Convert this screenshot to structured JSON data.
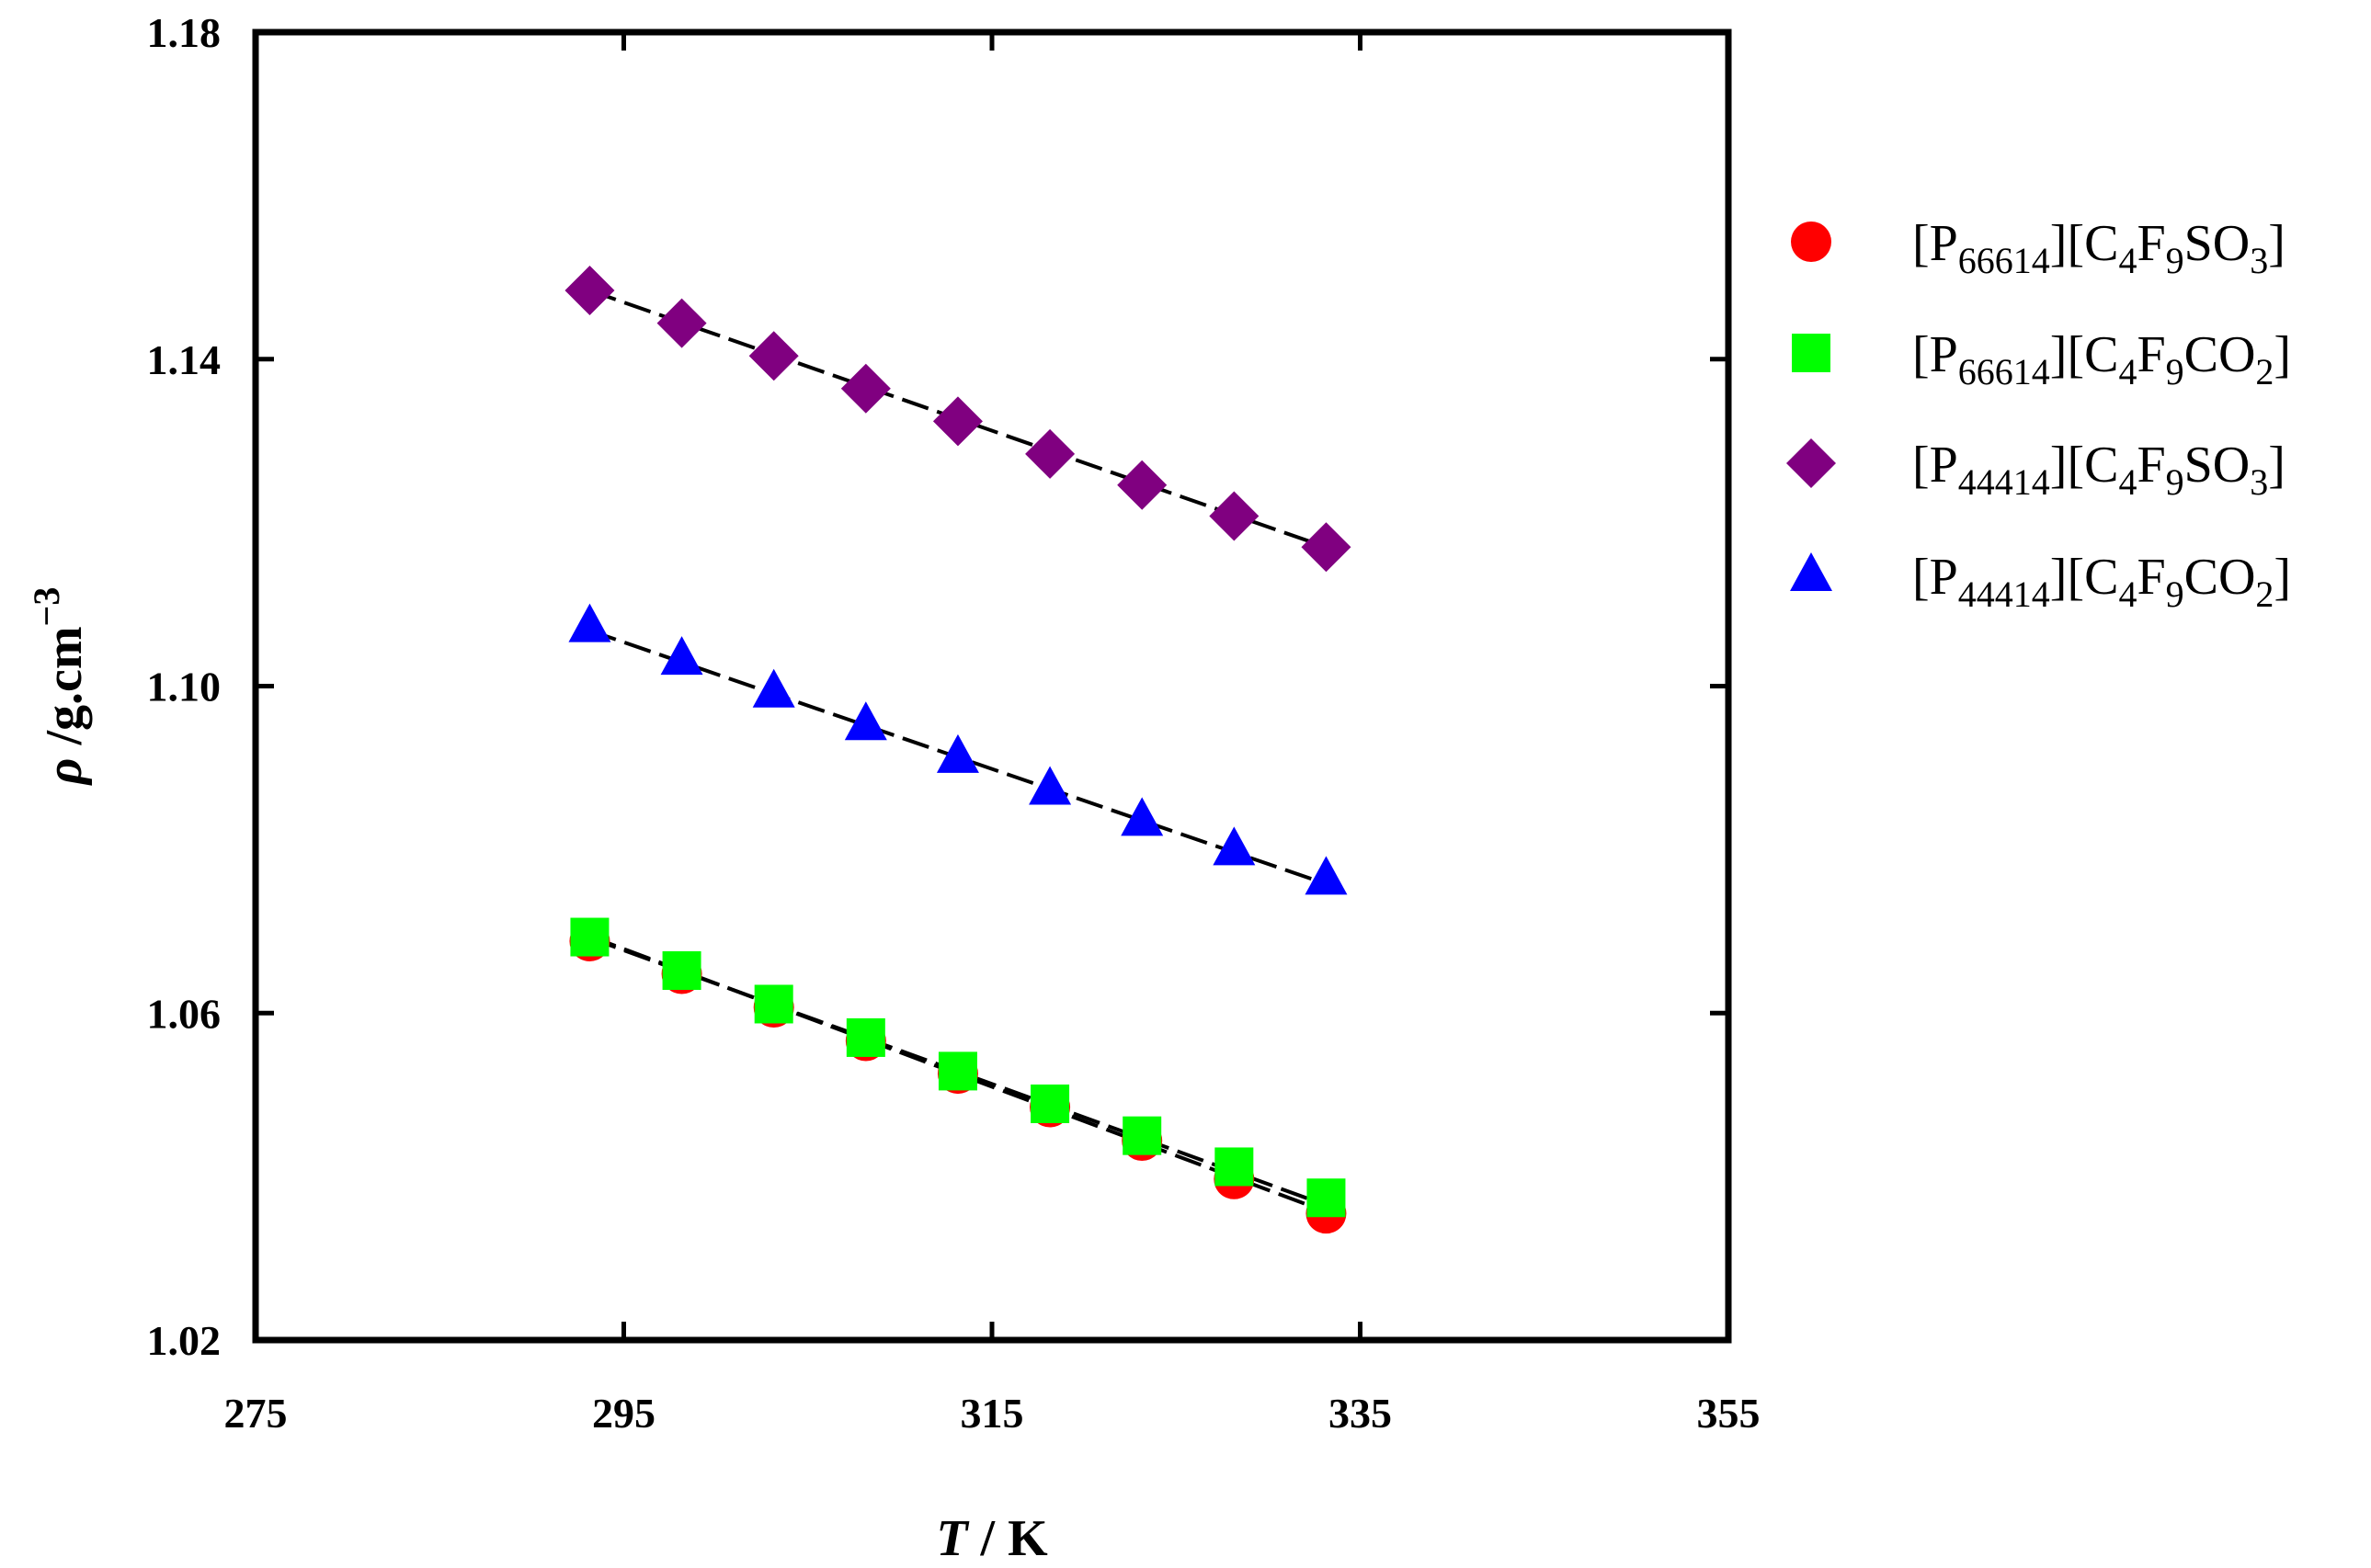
{
  "chart_data": {
    "type": "scatter",
    "xlabel": {
      "italic": "T",
      "rest": " / K"
    },
    "ylabel": {
      "symbol": "ρ",
      "rest": " /g.cm",
      "sup": "−3"
    },
    "xlim": [
      275,
      355
    ],
    "ylim": [
      1.02,
      1.18
    ],
    "xticks": [
      "275",
      "295",
      "315",
      "335",
      "355"
    ],
    "yticks": [
      "1.02",
      "1.06",
      "1.10",
      "1.14",
      "1.18"
    ],
    "grid": false,
    "legend_position": "right",
    "x": [
      293.15,
      298.15,
      303.15,
      308.15,
      313.15,
      318.15,
      323.15,
      328.15,
      333.15
    ],
    "series": [
      {
        "key": "p66614-c4f9so3",
        "name_parts": [
          [
            "[P",
            ""
          ],
          [
            "66614",
            "sub"
          ],
          [
            "][C",
            ""
          ],
          [
            "4",
            "sub"
          ],
          [
            "F",
            ""
          ],
          [
            "9",
            "sub"
          ],
          [
            "SO",
            ""
          ],
          [
            "3",
            "sub"
          ],
          [
            "]",
            ""
          ]
        ],
        "marker": "circle",
        "color": "#ff0000",
        "values": [
          1.0688,
          1.0648,
          1.0607,
          1.0566,
          1.0526,
          1.0485,
          1.0444,
          1.0397,
          1.0355
        ],
        "fit": [
          1.0694,
          1.0357
        ]
      },
      {
        "key": "p66614-c4f9co2",
        "name_parts": [
          [
            "[P",
            ""
          ],
          [
            "66614",
            "sub"
          ],
          [
            "][C",
            ""
          ],
          [
            "4",
            "sub"
          ],
          [
            "F",
            ""
          ],
          [
            "9",
            "sub"
          ],
          [
            "CO",
            ""
          ],
          [
            "2",
            "sub"
          ],
          [
            "]",
            ""
          ]
        ],
        "marker": "square",
        "color": "#00ff00",
        "values": [
          1.0693,
          1.0652,
          1.0611,
          1.057,
          1.0529,
          1.0489,
          1.045,
          1.0412,
          1.0374
        ],
        "fit": [
          1.0692,
          1.0365
        ]
      },
      {
        "key": "p44414-c4f9so3",
        "name_parts": [
          [
            "[P",
            ""
          ],
          [
            "44414",
            "sub"
          ],
          [
            "][C",
            ""
          ],
          [
            "4",
            "sub"
          ],
          [
            "F",
            ""
          ],
          [
            "9",
            "sub"
          ],
          [
            "SO",
            ""
          ],
          [
            "3",
            "sub"
          ],
          [
            "]",
            ""
          ]
        ],
        "marker": "diamond",
        "color": "#800080",
        "values": [
          1.1484,
          1.1444,
          1.1404,
          1.1364,
          1.1324,
          1.1284,
          1.1246,
          1.1208,
          1.117
        ],
        "fit": [
          1.1484,
          1.117
        ]
      },
      {
        "key": "p44414-c4f9co2",
        "name_parts": [
          [
            "[P",
            ""
          ],
          [
            "44414",
            "sub"
          ],
          [
            "][C",
            ""
          ],
          [
            "4",
            "sub"
          ],
          [
            "F",
            ""
          ],
          [
            "9",
            "sub"
          ],
          [
            "CO",
            ""
          ],
          [
            "2",
            "sub"
          ],
          [
            "]",
            ""
          ]
        ],
        "marker": "triangle",
        "color": "#0000ff",
        "values": [
          1.1073,
          1.1033,
          1.0993,
          1.0953,
          1.0913,
          1.0874,
          1.0836,
          1.08,
          1.0764
        ],
        "fit": [
          1.1068,
          1.0758
        ]
      }
    ]
  }
}
